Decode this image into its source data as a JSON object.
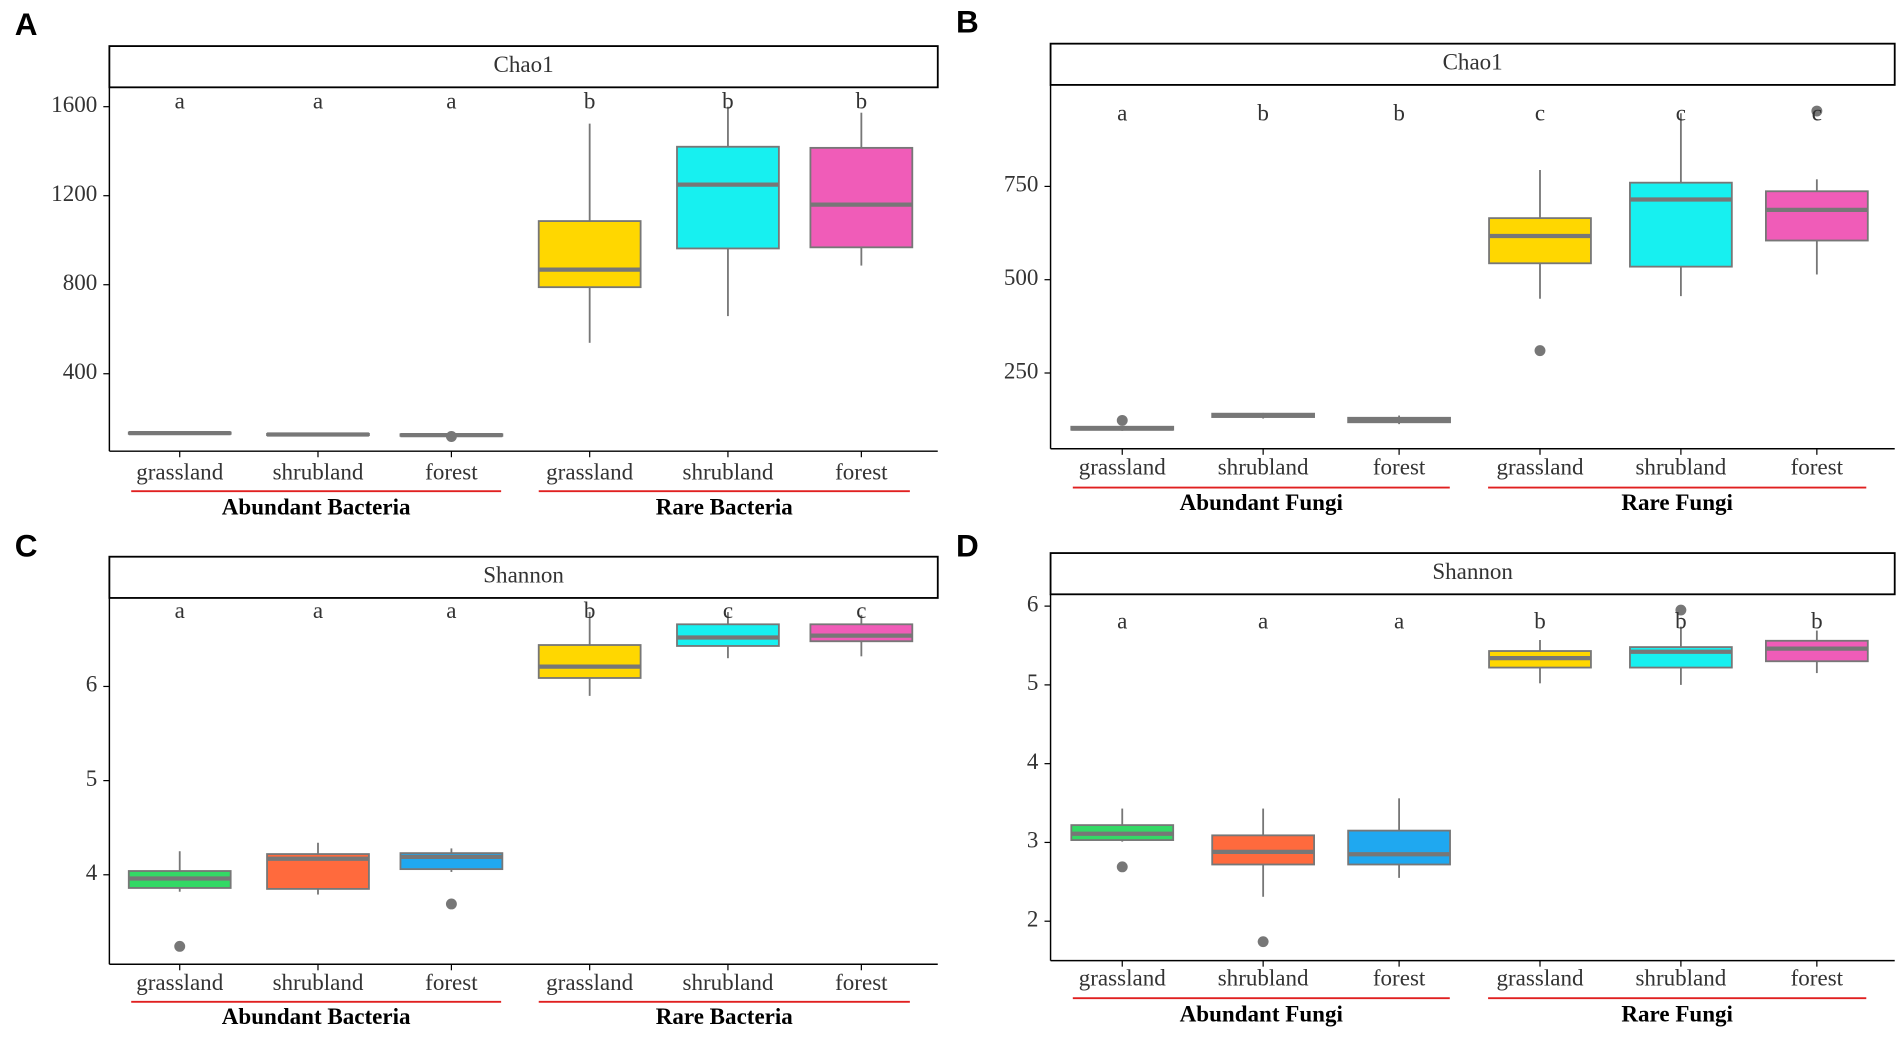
{
  "chart_data": [
    {
      "type": "box",
      "panel": "A",
      "title": "Chao1",
      "categories": [
        "grassland",
        "shrubland",
        "forest",
        "grassland",
        "shrubland",
        "forest"
      ],
      "groups": [
        "Abundant Bacteria",
        "Rare Bacteria"
      ],
      "letters": [
        "a",
        "a",
        "a",
        "b",
        "b",
        "b"
      ],
      "colors": [
        "#33d965",
        "#ff6a3d",
        "#1fa8f0",
        "#ffd700",
        "#17f0f0",
        "#f05cb8"
      ],
      "boxes": [
        {
          "whislo": 128,
          "q1": 130,
          "med": 133,
          "q3": 136,
          "whishi": 138
        },
        {
          "whislo": 122,
          "q1": 124,
          "med": 127,
          "q3": 130,
          "whishi": 132
        },
        {
          "whislo": 118,
          "q1": 121,
          "med": 124,
          "q3": 128,
          "whishi": 130,
          "outliers": [
            118
          ]
        },
        {
          "whislo": 539,
          "q1": 789,
          "med": 868,
          "q3": 1086,
          "whishi": 1524
        },
        {
          "whislo": 659,
          "q1": 963,
          "med": 1250,
          "q3": 1420,
          "whishi": 1600
        },
        {
          "whislo": 886,
          "q1": 968,
          "med": 1160,
          "q3": 1415,
          "whishi": 1573
        }
      ],
      "ylim": [
        52,
        1687
      ],
      "yticks": [
        400,
        800,
        1200,
        1600
      ]
    },
    {
      "type": "box",
      "panel": "B",
      "title": "Chao1",
      "categories": [
        "grassland",
        "shrubland",
        "forest",
        "grassland",
        "shrubland",
        "forest"
      ],
      "groups": [
        "Abundant Fungi",
        "Rare Fungi"
      ],
      "letters": [
        "a",
        "b",
        "b",
        "c",
        "c",
        "c"
      ],
      "colors": [
        "#33d965",
        "#ff6a3d",
        "#1fa8f0",
        "#ffd700",
        "#17f0f0",
        "#f05cb8"
      ],
      "boxes": [
        {
          "whislo": 95,
          "q1": 98,
          "med": 101,
          "q3": 106,
          "whishi": 108,
          "outliers": [
            123
          ]
        },
        {
          "whislo": 128,
          "q1": 132,
          "med": 137,
          "q3": 141,
          "whishi": 143
        },
        {
          "whislo": 113,
          "q1": 118,
          "med": 124,
          "q3": 130,
          "whishi": 136
        },
        {
          "whislo": 449,
          "q1": 544,
          "med": 617,
          "q3": 665,
          "whishi": 794,
          "outliers": [
            310
          ]
        },
        {
          "whislo": 456,
          "q1": 535,
          "med": 715,
          "q3": 760,
          "whishi": 946
        },
        {
          "whislo": 514,
          "q1": 605,
          "med": 687,
          "q3": 737,
          "whishi": 769,
          "outliers": [
            952
          ]
        }
      ],
      "ylim": [
        47,
        1022
      ],
      "yticks": [
        250,
        500,
        750
      ]
    },
    {
      "type": "box",
      "panel": "C",
      "title": "Shannon",
      "categories": [
        "grassland",
        "shrubland",
        "forest",
        "grassland",
        "shrubland",
        "forest"
      ],
      "groups": [
        "Abundant Bacteria",
        "Rare Bacteria"
      ],
      "letters": [
        "a",
        "a",
        "a",
        "b",
        "c",
        "c"
      ],
      "colors": [
        "#33d965",
        "#ff6a3d",
        "#1fa8f0",
        "#ffd700",
        "#17f0f0",
        "#f05cb8"
      ],
      "boxes": [
        {
          "whislo": 3.82,
          "q1": 3.86,
          "med": 3.96,
          "q3": 4.04,
          "whishi": 4.25,
          "outliers": [
            3.24
          ]
        },
        {
          "whislo": 3.79,
          "q1": 3.85,
          "med": 4.17,
          "q3": 4.22,
          "whishi": 4.34
        },
        {
          "whislo": 4.03,
          "q1": 4.06,
          "med": 4.19,
          "q3": 4.23,
          "whishi": 4.28,
          "outliers": [
            3.69
          ]
        },
        {
          "whislo": 5.9,
          "q1": 6.09,
          "med": 6.21,
          "q3": 6.44,
          "whishi": 6.79
        },
        {
          "whislo": 6.3,
          "q1": 6.43,
          "med": 6.52,
          "q3": 6.66,
          "whishi": 6.79
        },
        {
          "whislo": 6.32,
          "q1": 6.48,
          "med": 6.54,
          "q3": 6.66,
          "whishi": 6.76
        }
      ],
      "ylim": [
        3.05,
        6.94
      ],
      "yticks": [
        4,
        5,
        6
      ]
    },
    {
      "type": "box",
      "panel": "D",
      "title": "Shannon",
      "categories": [
        "grassland",
        "shrubland",
        "forest",
        "grassland",
        "shrubland",
        "forest"
      ],
      "groups": [
        "Abundant Fungi",
        "Rare Fungi"
      ],
      "letters": [
        "a",
        "a",
        "a",
        "b",
        "b",
        "b"
      ],
      "colors": [
        "#33d965",
        "#ff6a3d",
        "#1fa8f0",
        "#ffd700",
        "#17f0f0",
        "#f05cb8"
      ],
      "boxes": [
        {
          "whislo": 3.01,
          "q1": 3.03,
          "med": 3.11,
          "q3": 3.22,
          "whishi": 3.43,
          "outliers": [
            2.69
          ]
        },
        {
          "whislo": 2.31,
          "q1": 2.72,
          "med": 2.88,
          "q3": 3.09,
          "whishi": 3.43,
          "outliers": [
            1.74
          ]
        },
        {
          "whislo": 2.55,
          "q1": 2.72,
          "med": 2.85,
          "q3": 3.15,
          "whishi": 3.56
        },
        {
          "whislo": 5.02,
          "q1": 5.22,
          "med": 5.34,
          "q3": 5.43,
          "whishi": 5.57
        },
        {
          "whislo": 5.0,
          "q1": 5.22,
          "med": 5.42,
          "q3": 5.48,
          "whishi": 5.74,
          "outliers": [
            5.95
          ]
        },
        {
          "whislo": 5.15,
          "q1": 5.3,
          "med": 5.46,
          "q3": 5.56,
          "whishi": 5.69
        }
      ],
      "ylim": [
        1.5,
        6.15
      ],
      "yticks": [
        2,
        3,
        4,
        5,
        6
      ]
    }
  ]
}
